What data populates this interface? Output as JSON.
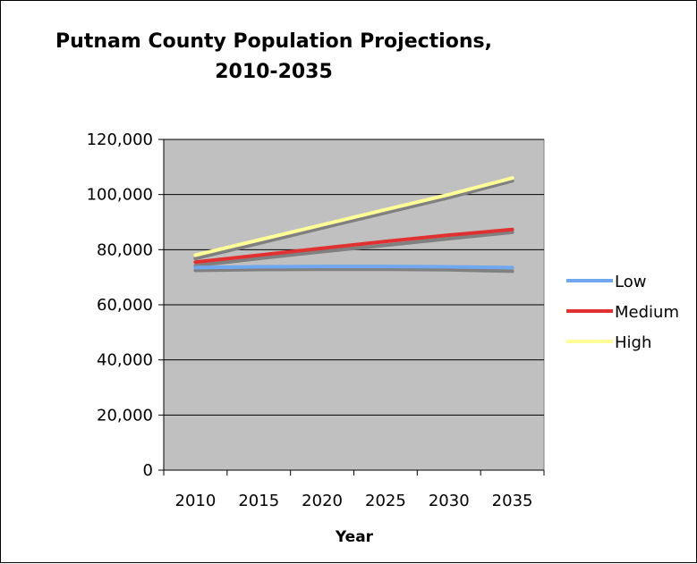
{
  "chart_data": {
    "type": "line",
    "title": "Putnam County Population Projections,",
    "title_line2": "2010-2035",
    "xlabel": "Year",
    "ylabel": "",
    "categories": [
      "2010",
      "2015",
      "2020",
      "2025",
      "2030",
      "2035"
    ],
    "y_ticks": [
      "0",
      "20,000",
      "40,000",
      "60,000",
      "80,000",
      "100,000",
      "120,000"
    ],
    "y_tick_values": [
      0,
      20000,
      40000,
      60000,
      80000,
      100000,
      120000
    ],
    "ylim": [
      0,
      120000
    ],
    "grid": "horizontal",
    "legend": "right",
    "plot_background": "#c0c0c0",
    "series": [
      {
        "name": "Low",
        "color": "#6fa8f0",
        "values": [
          73500,
          73800,
          73900,
          73900,
          73800,
          73500
        ]
      },
      {
        "name": "Medium",
        "color": "#e03030",
        "values": [
          75500,
          78000,
          80500,
          83000,
          85300,
          87300
        ]
      },
      {
        "name": "High",
        "color": "#ffff99",
        "values": [
          78000,
          83500,
          89000,
          94500,
          100000,
          106000
        ]
      }
    ],
    "trendlines": {
      "color": "#808080",
      "series": [
        {
          "values": [
            72500,
            72800,
            72900,
            72900,
            72700,
            72200
          ]
        },
        {
          "values": [
            74200,
            76800,
            79300,
            81600,
            84000,
            86300
          ]
        },
        {
          "values": [
            76800,
            82300,
            87900,
            93400,
            98900,
            105000
          ]
        }
      ]
    }
  }
}
